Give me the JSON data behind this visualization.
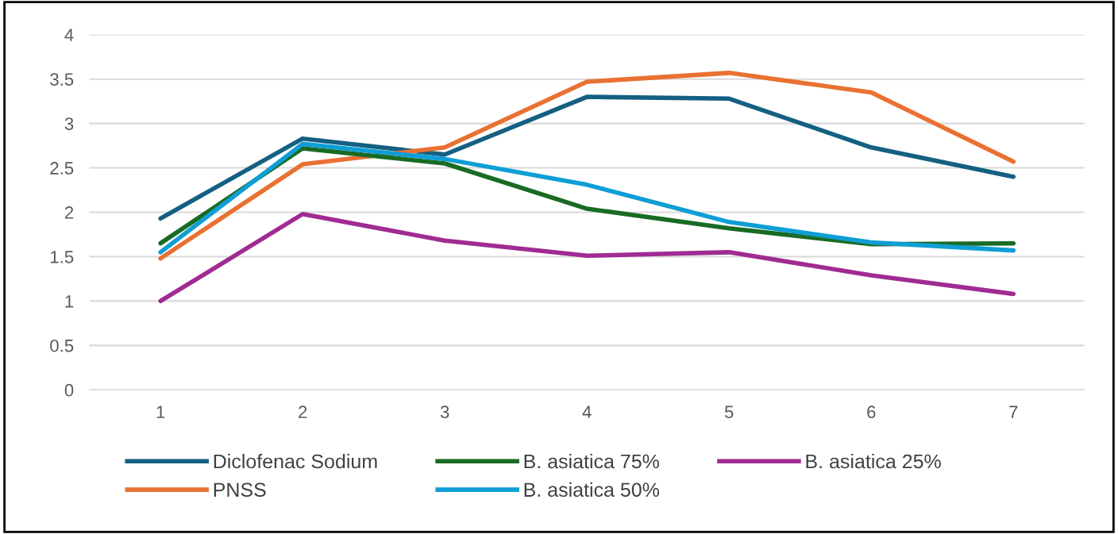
{
  "chart_data": {
    "type": "line",
    "categories": [
      "1",
      "2",
      "3",
      "4",
      "5",
      "6",
      "7"
    ],
    "series": [
      {
        "name": "Diclofenac Sodium",
        "color": "#156082",
        "values": [
          1.93,
          2.83,
          2.65,
          3.3,
          3.28,
          2.73,
          2.4
        ]
      },
      {
        "name": "PNSS",
        "color": "#e97132",
        "values": [
          1.48,
          2.54,
          2.73,
          3.47,
          3.57,
          3.35,
          2.57
        ]
      },
      {
        "name": "B. asiatica 75%",
        "color": "#196b24",
        "values": [
          1.65,
          2.72,
          2.55,
          2.04,
          1.82,
          1.64,
          1.65
        ]
      },
      {
        "name": "B. asiatica 50%",
        "color": "#0f9ed5",
        "values": [
          1.55,
          2.77,
          2.6,
          2.31,
          1.89,
          1.66,
          1.57
        ]
      },
      {
        "name": "B. asiatica 25%",
        "color": "#a02b93",
        "values": [
          1.0,
          1.98,
          1.68,
          1.51,
          1.55,
          1.29,
          1.08
        ]
      }
    ],
    "ylim": [
      0,
      4
    ],
    "yticks": [
      0,
      0.5,
      1,
      1.5,
      2,
      2.5,
      3,
      3.5,
      4
    ],
    "grid": "y",
    "legend": "bottom",
    "marker": "none",
    "line_style": "solid"
  }
}
